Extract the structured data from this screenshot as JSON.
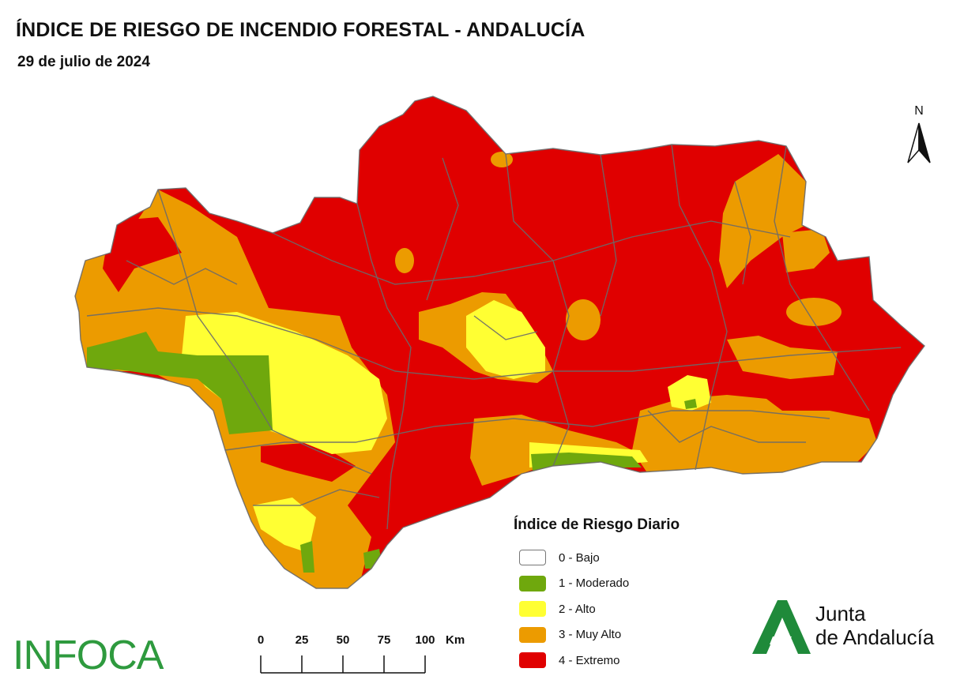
{
  "header": {
    "title": "ÍNDICE DE RIESGO DE INCENDIO FORESTAL - ANDALUCÍA",
    "date": "29 de julio de 2024"
  },
  "map": {
    "north_label": "N",
    "colors": {
      "bajo": "#ffffff",
      "moderado": "#6fa80d",
      "alto": "#ffff33",
      "muy_alto": "#ec9b00",
      "extremo": "#e00000",
      "borders": "#6b6b6b"
    }
  },
  "legend": {
    "title": "Índice de Riesgo Diario",
    "items": [
      {
        "label": "0 - Bajo",
        "color": "#ffffff"
      },
      {
        "label": "1 - Moderado",
        "color": "#6fa80d"
      },
      {
        "label": "2 - Alto",
        "color": "#ffff33"
      },
      {
        "label": "3 - Muy Alto",
        "color": "#ec9b00"
      },
      {
        "label": "4 - Extremo",
        "color": "#e00000"
      }
    ]
  },
  "scale_bar": {
    "ticks": [
      "0",
      "25",
      "50",
      "75",
      "100"
    ],
    "unit": "Km"
  },
  "logos": {
    "infoca": "INFOCA",
    "junta_line1": "Junta",
    "junta_line2": "de Andalucía",
    "infoca_color": "#2e9a3e",
    "junta_color": "#1f8a3a"
  }
}
